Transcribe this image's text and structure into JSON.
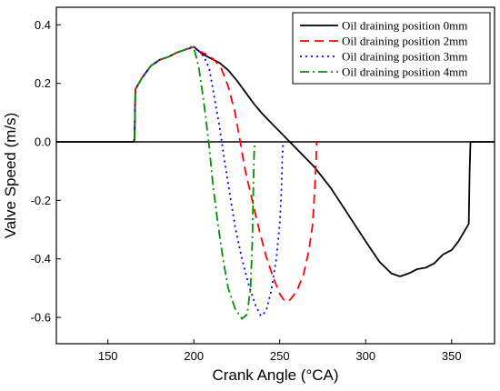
{
  "chart_data": {
    "type": "line",
    "xlabel": "Crank Angle (°CA)",
    "ylabel": "Valve Speed (m/s)",
    "xlim": [
      120,
      375
    ],
    "ylim": [
      -0.69,
      0.46
    ],
    "xticks": [
      150,
      200,
      250,
      300,
      350
    ],
    "yticks": [
      -0.6,
      -0.4,
      -0.2,
      0.0,
      0.2,
      0.4
    ],
    "ytick_labels": [
      "-0.6",
      "-0.4",
      "-0.2",
      "0.0",
      "0.2",
      "0.4"
    ],
    "zero_line": true,
    "grid": false,
    "legend_position": "top-right",
    "series": [
      {
        "name": "Oil draining position 0mm",
        "color": "#000000",
        "dash": "solid",
        "points": [
          [
            120,
            0
          ],
          [
            165,
            0
          ],
          [
            165.5,
            0.01
          ],
          [
            166,
            0.18
          ],
          [
            170,
            0.22
          ],
          [
            175,
            0.26
          ],
          [
            180,
            0.28
          ],
          [
            185,
            0.29
          ],
          [
            190,
            0.305
          ],
          [
            195,
            0.315
          ],
          [
            200,
            0.325
          ],
          [
            203,
            0.31
          ],
          [
            205,
            0.3
          ],
          [
            210,
            0.285
          ],
          [
            215,
            0.27
          ],
          [
            220,
            0.245
          ],
          [
            225,
            0.21
          ],
          [
            230,
            0.17
          ],
          [
            235,
            0.13
          ],
          [
            240,
            0.095
          ],
          [
            245,
            0.065
          ],
          [
            250,
            0.035
          ],
          [
            255,
            0.005
          ],
          [
            260,
            -0.025
          ],
          [
            270,
            -0.085
          ],
          [
            280,
            -0.16
          ],
          [
            290,
            -0.25
          ],
          [
            300,
            -0.34
          ],
          [
            308,
            -0.41
          ],
          [
            315,
            -0.45
          ],
          [
            320,
            -0.46
          ],
          [
            325,
            -0.45
          ],
          [
            330,
            -0.435
          ],
          [
            335,
            -0.43
          ],
          [
            340,
            -0.415
          ],
          [
            345,
            -0.385
          ],
          [
            350,
            -0.37
          ],
          [
            354,
            -0.34
          ],
          [
            358,
            -0.3
          ],
          [
            360,
            -0.28
          ],
          [
            360.5,
            -0.1
          ],
          [
            361,
            0
          ],
          [
            375,
            0
          ]
        ]
      },
      {
        "name": "Oil draining position 2mm",
        "color": "#ff0000",
        "dash": "10,6",
        "points": [
          [
            165.5,
            0.01
          ],
          [
            166,
            0.18
          ],
          [
            170,
            0.22
          ],
          [
            175,
            0.26
          ],
          [
            180,
            0.28
          ],
          [
            185,
            0.29
          ],
          [
            190,
            0.305
          ],
          [
            195,
            0.315
          ],
          [
            200,
            0.325
          ],
          [
            203,
            0.31
          ],
          [
            207,
            0.3
          ],
          [
            212,
            0.28
          ],
          [
            216,
            0.25
          ],
          [
            220,
            0.19
          ],
          [
            224,
            0.1
          ],
          [
            227,
            0.0
          ],
          [
            230,
            -0.1
          ],
          [
            234,
            -0.2
          ],
          [
            238,
            -0.3
          ],
          [
            242,
            -0.39
          ],
          [
            246,
            -0.46
          ],
          [
            250,
            -0.52
          ],
          [
            253,
            -0.545
          ],
          [
            256,
            -0.54
          ],
          [
            260,
            -0.51
          ],
          [
            264,
            -0.45
          ],
          [
            267,
            -0.37
          ],
          [
            269,
            -0.29
          ],
          [
            270,
            -0.2
          ],
          [
            271,
            -0.09
          ],
          [
            271.5,
            0.0
          ]
        ]
      },
      {
        "name": "Oil draining position 3mm",
        "color": "#0000ff",
        "dash": "2,4",
        "points": [
          [
            165.5,
            0.01
          ],
          [
            166,
            0.18
          ],
          [
            170,
            0.22
          ],
          [
            175,
            0.26
          ],
          [
            180,
            0.28
          ],
          [
            185,
            0.29
          ],
          [
            190,
            0.305
          ],
          [
            195,
            0.315
          ],
          [
            200,
            0.325
          ],
          [
            203,
            0.31
          ],
          [
            206,
            0.29
          ],
          [
            209,
            0.25
          ],
          [
            212,
            0.15
          ],
          [
            215,
            0.05
          ],
          [
            218,
            -0.07
          ],
          [
            221,
            -0.18
          ],
          [
            224,
            -0.29
          ],
          [
            228,
            -0.4
          ],
          [
            232,
            -0.49
          ],
          [
            236,
            -0.56
          ],
          [
            239,
            -0.595
          ],
          [
            242,
            -0.58
          ],
          [
            245,
            -0.51
          ],
          [
            248,
            -0.4
          ],
          [
            250,
            -0.28
          ],
          [
            251,
            -0.16
          ],
          [
            251.5,
            -0.05
          ],
          [
            252,
            0.0
          ]
        ]
      },
      {
        "name": "Oil draining position 4mm",
        "color": "#009000",
        "dash": "10,4,2,4",
        "points": [
          [
            165.5,
            0.01
          ],
          [
            166,
            0.18
          ],
          [
            170,
            0.22
          ],
          [
            175,
            0.26
          ],
          [
            180,
            0.28
          ],
          [
            185,
            0.29
          ],
          [
            190,
            0.305
          ],
          [
            195,
            0.315
          ],
          [
            198,
            0.325
          ],
          [
            200,
            0.32
          ],
          [
            201,
            0.3
          ],
          [
            203,
            0.25
          ],
          [
            205,
            0.17
          ],
          [
            207,
            0.08
          ],
          [
            209,
            -0.02
          ],
          [
            211,
            -0.14
          ],
          [
            214,
            -0.28
          ],
          [
            217,
            -0.4
          ],
          [
            220,
            -0.5
          ],
          [
            224,
            -0.57
          ],
          [
            228,
            -0.605
          ],
          [
            231,
            -0.59
          ],
          [
            233,
            -0.5
          ],
          [
            234,
            -0.35
          ],
          [
            234.5,
            -0.2
          ],
          [
            235,
            -0.05
          ],
          [
            235.5,
            0.0
          ]
        ]
      }
    ]
  }
}
